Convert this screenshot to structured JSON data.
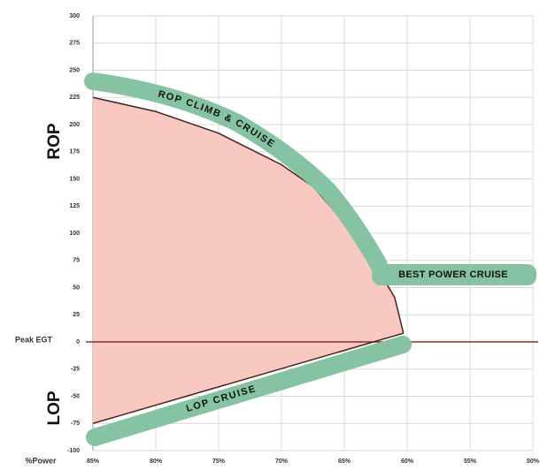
{
  "chart_data": {
    "type": "area",
    "x_label": "%Power",
    "xlim": [
      85,
      50
    ],
    "xticks": [
      {
        "value": 85,
        "label": "85%"
      },
      {
        "value": 80,
        "label": "80%"
      },
      {
        "value": 75,
        "label": "75%"
      },
      {
        "value": 70,
        "label": "70%"
      },
      {
        "value": 65,
        "label": "65%"
      },
      {
        "value": 60,
        "label": "60%"
      },
      {
        "value": 55,
        "label": "55%"
      },
      {
        "value": 50,
        "label": "50%"
      }
    ],
    "ylim": [
      -100,
      300
    ],
    "yticks": [
      -100,
      -75,
      -50,
      -25,
      0,
      25,
      50,
      75,
      100,
      125,
      150,
      175,
      200,
      225,
      250,
      275,
      300
    ],
    "grid": true,
    "upper_boundary": {
      "x": [
        85,
        80,
        75,
        70,
        67.5,
        65,
        62.5,
        61,
        60.3
      ],
      "y": [
        225,
        212,
        192,
        163,
        143,
        110,
        70,
        41,
        8
      ]
    },
    "lower_boundary": {
      "x": [
        85,
        60.3
      ],
      "y": [
        -75,
        8
      ]
    },
    "fill_color": "#f8c9c0",
    "line_color": "#4a2020",
    "reference_line": {
      "value": 0,
      "color": "#8b2e2e"
    },
    "annotations": {
      "rop": "ROP",
      "lop": "LOP",
      "peak": "Peak EGT",
      "rop_band": "ROP CLIMB & CRUISE",
      "best_power": "BEST POWER CRUISE",
      "lop_band": "LOP CRUISE"
    }
  }
}
